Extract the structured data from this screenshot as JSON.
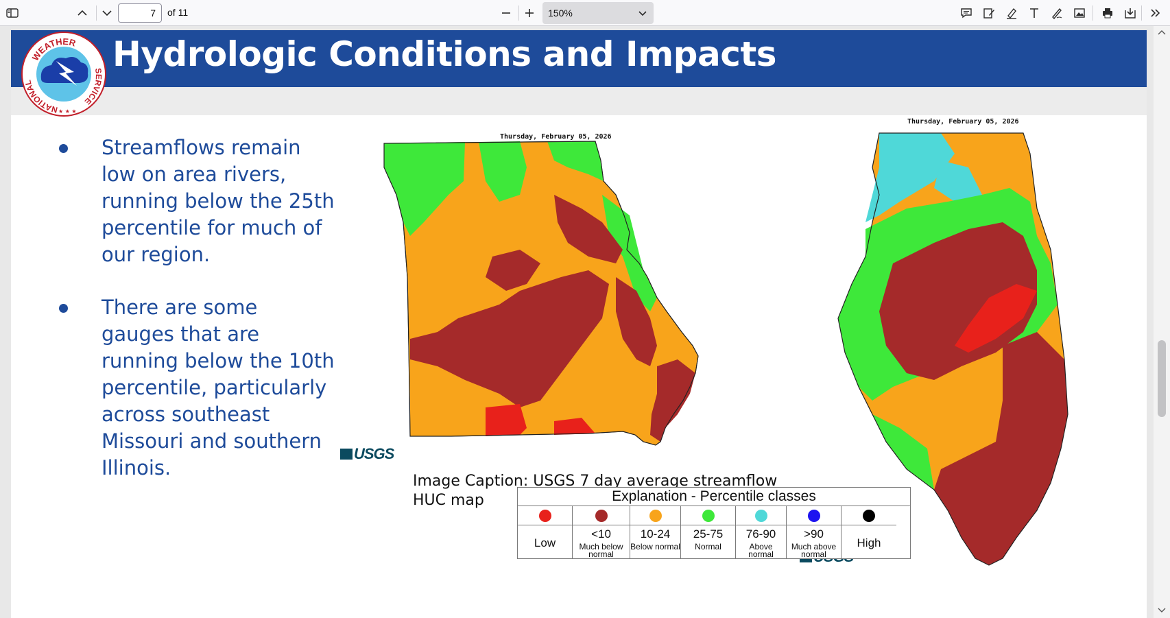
{
  "toolbar": {
    "page_number": "7",
    "page_total": "of 11",
    "zoom_value": "150%",
    "icons": [
      "sidebar-toggle-icon",
      "page-up-icon",
      "page-down-icon",
      "zoom-out-icon",
      "zoom-in-icon",
      "comment-icon",
      "edit-sign-icon",
      "highlight-icon",
      "text-icon",
      "draw-icon",
      "image-icon",
      "print-icon",
      "save-icon",
      "more-tools-icon"
    ]
  },
  "slide": {
    "title": "Hydrologic Conditions and Impacts",
    "logo_text_top": "WEATHER",
    "logo_text_left": "NATIONAL",
    "logo_text_right": "SERVICE",
    "bullets": [
      "Streamflows remain low on area rivers, running below the 25th percentile for much of our region.",
      "There are some gauges that are running below the 10th percentile, particularly across southeast Missouri and southern Illinois."
    ],
    "map_date_left": "Thursday, February 05, 2026",
    "map_date_right": "Thursday, February 05, 2026",
    "usgs_label": "USGS",
    "caption": "Image Caption: USGS 7 day average streamflow HUC map",
    "legend": {
      "title": "Explanation - Percentile classes",
      "columns": [
        {
          "color": "#e8211b",
          "range": "",
          "label": "Low"
        },
        {
          "color": "#a52a2a",
          "range": "<10",
          "desc": "Much below normal"
        },
        {
          "color": "#f8a41b",
          "range": "10-24",
          "desc": "Below normal"
        },
        {
          "color": "#3ee83a",
          "range": "25-75",
          "desc": "Normal"
        },
        {
          "color": "#4fd8d8",
          "range": "76-90",
          "desc": "Above normal"
        },
        {
          "color": "#1d13f0",
          "range": ">90",
          "desc": "Much above normal"
        },
        {
          "color": "#000000",
          "range": "",
          "label": "High"
        }
      ]
    }
  },
  "colors": {
    "banner": "#1e4b9a",
    "bullet_text": "#1e4b9a",
    "low": "#e8211b",
    "much_below": "#a52a2a",
    "below": "#f8a41b",
    "normal": "#3ee83a",
    "above": "#4fd8d8"
  }
}
